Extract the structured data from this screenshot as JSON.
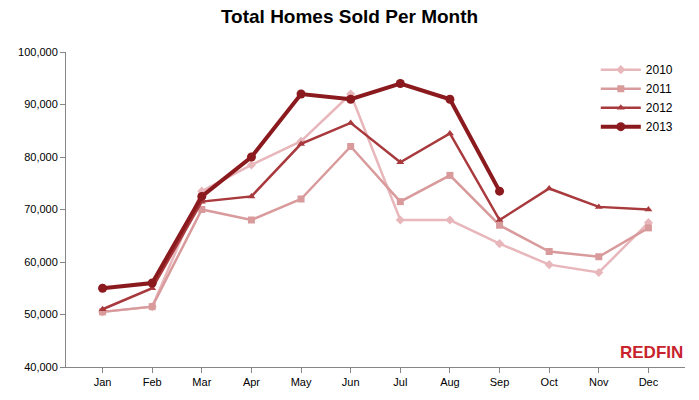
{
  "chart_data": {
    "type": "line",
    "title": "Total Homes Sold Per Month",
    "categories": [
      "Jan",
      "Feb",
      "Mar",
      "Apr",
      "May",
      "Jun",
      "Jul",
      "Aug",
      "Sep",
      "Oct",
      "Nov",
      "Dec"
    ],
    "series": [
      {
        "name": "2010",
        "color": "#e8b7bb",
        "marker": "diamond",
        "line_style": "solid",
        "values": [
          50500,
          51500,
          73500,
          78500,
          83000,
          92000,
          68000,
          68000,
          63500,
          59500,
          58000,
          67500
        ]
      },
      {
        "name": "2011",
        "color": "#d99a9c",
        "marker": "square",
        "line_style": "solid",
        "values": [
          50500,
          51500,
          70000,
          68000,
          72000,
          82000,
          71500,
          76500,
          67000,
          62000,
          61000,
          66500
        ]
      },
      {
        "name": "2012",
        "color": "#a8393c",
        "marker": "triangle-up",
        "line_style": "solid",
        "values": [
          51000,
          55000,
          71500,
          72500,
          82500,
          86500,
          79000,
          84500,
          68000,
          74000,
          70500,
          70000
        ]
      },
      {
        "name": "2013",
        "color": "#8b1a1e",
        "marker": "circle",
        "line_style": "solid",
        "values": [
          55000,
          56000,
          72500,
          80000,
          92000,
          91000,
          94000,
          91000,
          73500,
          null,
          null,
          null
        ]
      }
    ],
    "ylim": [
      40000,
      100000
    ],
    "yticks": [
      {
        "value": 40000,
        "label": "40,000"
      },
      {
        "value": 50000,
        "label": "50,000"
      },
      {
        "value": 60000,
        "label": "60,000"
      },
      {
        "value": 70000,
        "label": "70,000"
      },
      {
        "value": 80000,
        "label": "80,000"
      },
      {
        "value": 90000,
        "label": "90,000"
      },
      {
        "value": 100000,
        "label": "100,000"
      }
    ],
    "grid": false,
    "legend": "upper right",
    "annotations": [
      "REDFIN"
    ]
  }
}
